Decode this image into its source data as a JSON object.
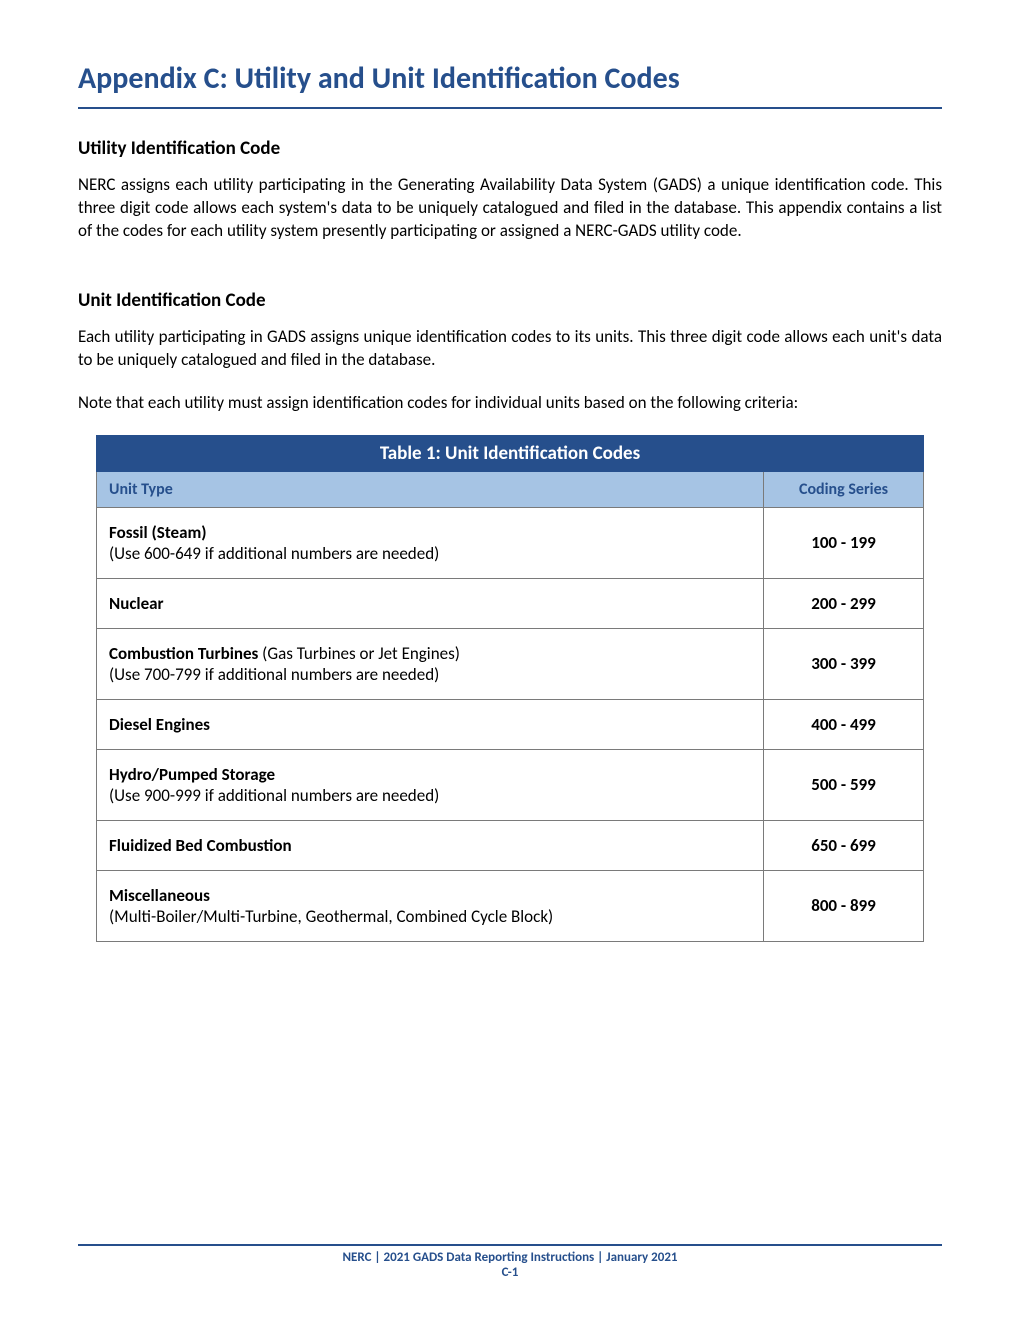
{
  "title": "Appendix C: Utility and Unit Identification Codes",
  "section1": {
    "heading": "Utility Identification Code",
    "para1": "NERC assigns each utility participating in the Generating Availability Data System (GADS) a unique identification code. This three digit code allows each system's data to be uniquely catalogued and filed in the database. This appendix contains a list of the codes for each utility system presently participating or assigned a NERC-GADS utility code."
  },
  "section2": {
    "heading": "Unit Identification Code",
    "para1": "Each utility participating in GADS assigns unique identification codes to its units. This three digit code allows each unit's data to be uniquely catalogued and filed in the database.",
    "para2": "Note that each utility must assign identification codes for individual units based on the following criteria:"
  },
  "table": {
    "title": "Table 1: Unit Identification Codes",
    "col1": "Unit Type",
    "col2": "Coding Series",
    "rows": [
      {
        "bold": "Fossil (Steam)",
        "rest": "",
        "line2": "(Use 600-649 if additional numbers are needed)",
        "series": "100 - 199"
      },
      {
        "bold": "Nuclear",
        "rest": "",
        "line2": "",
        "series": "200 - 299"
      },
      {
        "bold": "Combustion Turbines",
        "rest": " (Gas Turbines or Jet Engines)",
        "line2": "(Use 700-799 if additional numbers are needed)",
        "series": "300 - 399"
      },
      {
        "bold": "Diesel Engines",
        "rest": "",
        "line2": "",
        "series": "400 - 499"
      },
      {
        "bold": "Hydro/Pumped Storage",
        "rest": "",
        "line2": "(Use 900-999 if additional numbers are needed)",
        "series": "500 - 599"
      },
      {
        "bold": "Fluidized Bed Combustion",
        "rest": "",
        "line2": "",
        "series": "650 - 699"
      },
      {
        "bold": "Miscellaneous",
        "rest": "",
        "line2": "(Multi-Boiler/Multi-Turbine, Geothermal, Combined Cycle Block)",
        "series": "800 - 899"
      }
    ]
  },
  "footer": {
    "line1": "NERC | 2021 GADS Data Reporting Instructions | January 2021",
    "line2": "C-1"
  },
  "colors": {
    "accent": "#264f8c",
    "header_bg": "#a6c4e4",
    "border": "#7a7a7a",
    "text": "#000000",
    "bg": "#ffffff"
  }
}
